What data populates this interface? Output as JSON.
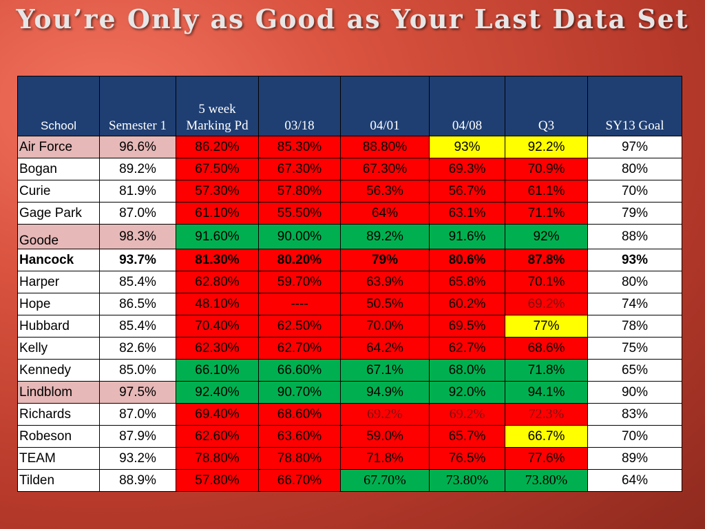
{
  "title": "You’re Only as Good as Your Last Data Set",
  "columns": [
    "School",
    "Semester 1",
    "5 week Marking Pd",
    "03/18",
    "04/01",
    "04/08",
    "Q3",
    "SY13 Goal"
  ],
  "rows": [
    {
      "school": "Air Force",
      "values": [
        "96.6%",
        "86.20%",
        "85.30%",
        "88.80%",
        "93%",
        "92.2%",
        "97%"
      ]
    },
    {
      "school": "Bogan",
      "values": [
        "89.2%",
        "67.50%",
        "67.30%",
        "67.30%",
        "69.3%",
        "70.9%",
        "80%"
      ]
    },
    {
      "school": "Curie",
      "values": [
        "81.9%",
        "57.30%",
        "57.80%",
        "56.3%",
        "56.7%",
        "61.1%",
        "70%"
      ]
    },
    {
      "school": "Gage Park",
      "values": [
        "87.0%",
        "61.10%",
        "55.50%",
        "64%",
        "63.1%",
        "71.1%",
        "79%"
      ]
    },
    {
      "school": "Goode",
      "values": [
        "98.3%",
        "91.60%",
        "90.00%",
        "89.2%",
        "91.6%",
        "92%",
        "88%"
      ]
    },
    {
      "school": "Hancock",
      "values": [
        "93.7%",
        "81.30%",
        "80.20%",
        "79%",
        "80.6%",
        "87.8%",
        "93%"
      ]
    },
    {
      "school": "Harper",
      "values": [
        "85.4%",
        "62.80%",
        "59.70%",
        "63.9%",
        "65.8%",
        "70.1%",
        "80%"
      ]
    },
    {
      "school": "Hope",
      "values": [
        "86.5%",
        "48.10%",
        "----",
        "50.5%",
        "60.2%",
        "69.2%",
        "74%"
      ]
    },
    {
      "school": "Hubbard",
      "values": [
        "85.4%",
        "70.40%",
        "62.50%",
        "70.0%",
        "69.5%",
        "77%",
        "78%"
      ]
    },
    {
      "school": "Kelly",
      "values": [
        "82.6%",
        "62.30%",
        "62.70%",
        "64.2%",
        "62.7%",
        "68.6%",
        "75%"
      ]
    },
    {
      "school": "Kennedy",
      "values": [
        "85.0%",
        "66.10%",
        "66.60%",
        "67.1%",
        "68.0%",
        "71.8%",
        "65%"
      ]
    },
    {
      "school": "Lindblom",
      "values": [
        "97.5%",
        "92.40%",
        "90.70%",
        "94.9%",
        "92.0%",
        "94.1%",
        "90%"
      ]
    },
    {
      "school": "Richards",
      "values": [
        "87.0%",
        "69.40%",
        "68.60%",
        "69.2%",
        "69.2%",
        "72.3%",
        "83%"
      ]
    },
    {
      "school": "Robeson",
      "values": [
        "87.9%",
        "62.60%",
        "63.60%",
        "59.0%",
        "65.7%",
        "66.7%",
        "70%"
      ]
    },
    {
      "school": "TEAM",
      "values": [
        "93.2%",
        "78.80%",
        "78.80%",
        "71.8%",
        "76.5%",
        "77.6%",
        "89%"
      ]
    },
    {
      "school": "Tilden",
      "values": [
        "88.9%",
        "57.80%",
        "66.70%",
        "67.70%",
        "73.80%",
        "73.80%",
        "64%"
      ]
    }
  ],
  "colors": {
    "header_bg": "#1f3f73",
    "red": "#ff0000",
    "yellow": "#ffff00",
    "green": "#00b050",
    "pink": "#e6b8b7",
    "white": "#ffffff"
  }
}
